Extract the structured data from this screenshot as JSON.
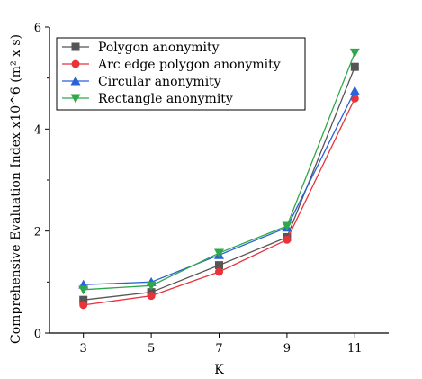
{
  "chart_data": {
    "type": "line",
    "title": "",
    "xlabel": "K",
    "ylabel": "Comprehensive Evaluation Index  x10^6 (m² x s)",
    "x": [
      3,
      5,
      7,
      9,
      11
    ],
    "x_ticks": [
      "3",
      "5",
      "7",
      "9",
      "11"
    ],
    "xlim": [
      2,
      12
    ],
    "y_ticks": [
      "0",
      "2",
      "4",
      "6"
    ],
    "ylim": [
      0,
      6
    ],
    "legend_position": "top-left",
    "grid": false,
    "series": [
      {
        "name": "Polygon anonymity",
        "color": "#555555",
        "marker": "square",
        "values": [
          0.65,
          0.8,
          1.33,
          1.88,
          5.22
        ]
      },
      {
        "name": "Arc edge polygon anonymity",
        "color": "#e8333a",
        "marker": "circle",
        "values": [
          0.55,
          0.73,
          1.2,
          1.83,
          4.6
        ]
      },
      {
        "name": "Circular anonymity",
        "color": "#2962d9",
        "marker": "triangle-up",
        "values": [
          0.95,
          1.0,
          1.53,
          2.07,
          4.75
        ]
      },
      {
        "name": "Rectangle anonymity",
        "color": "#2ea84a",
        "marker": "triangle-down",
        "values": [
          0.85,
          0.93,
          1.57,
          2.1,
          5.5
        ]
      }
    ]
  }
}
